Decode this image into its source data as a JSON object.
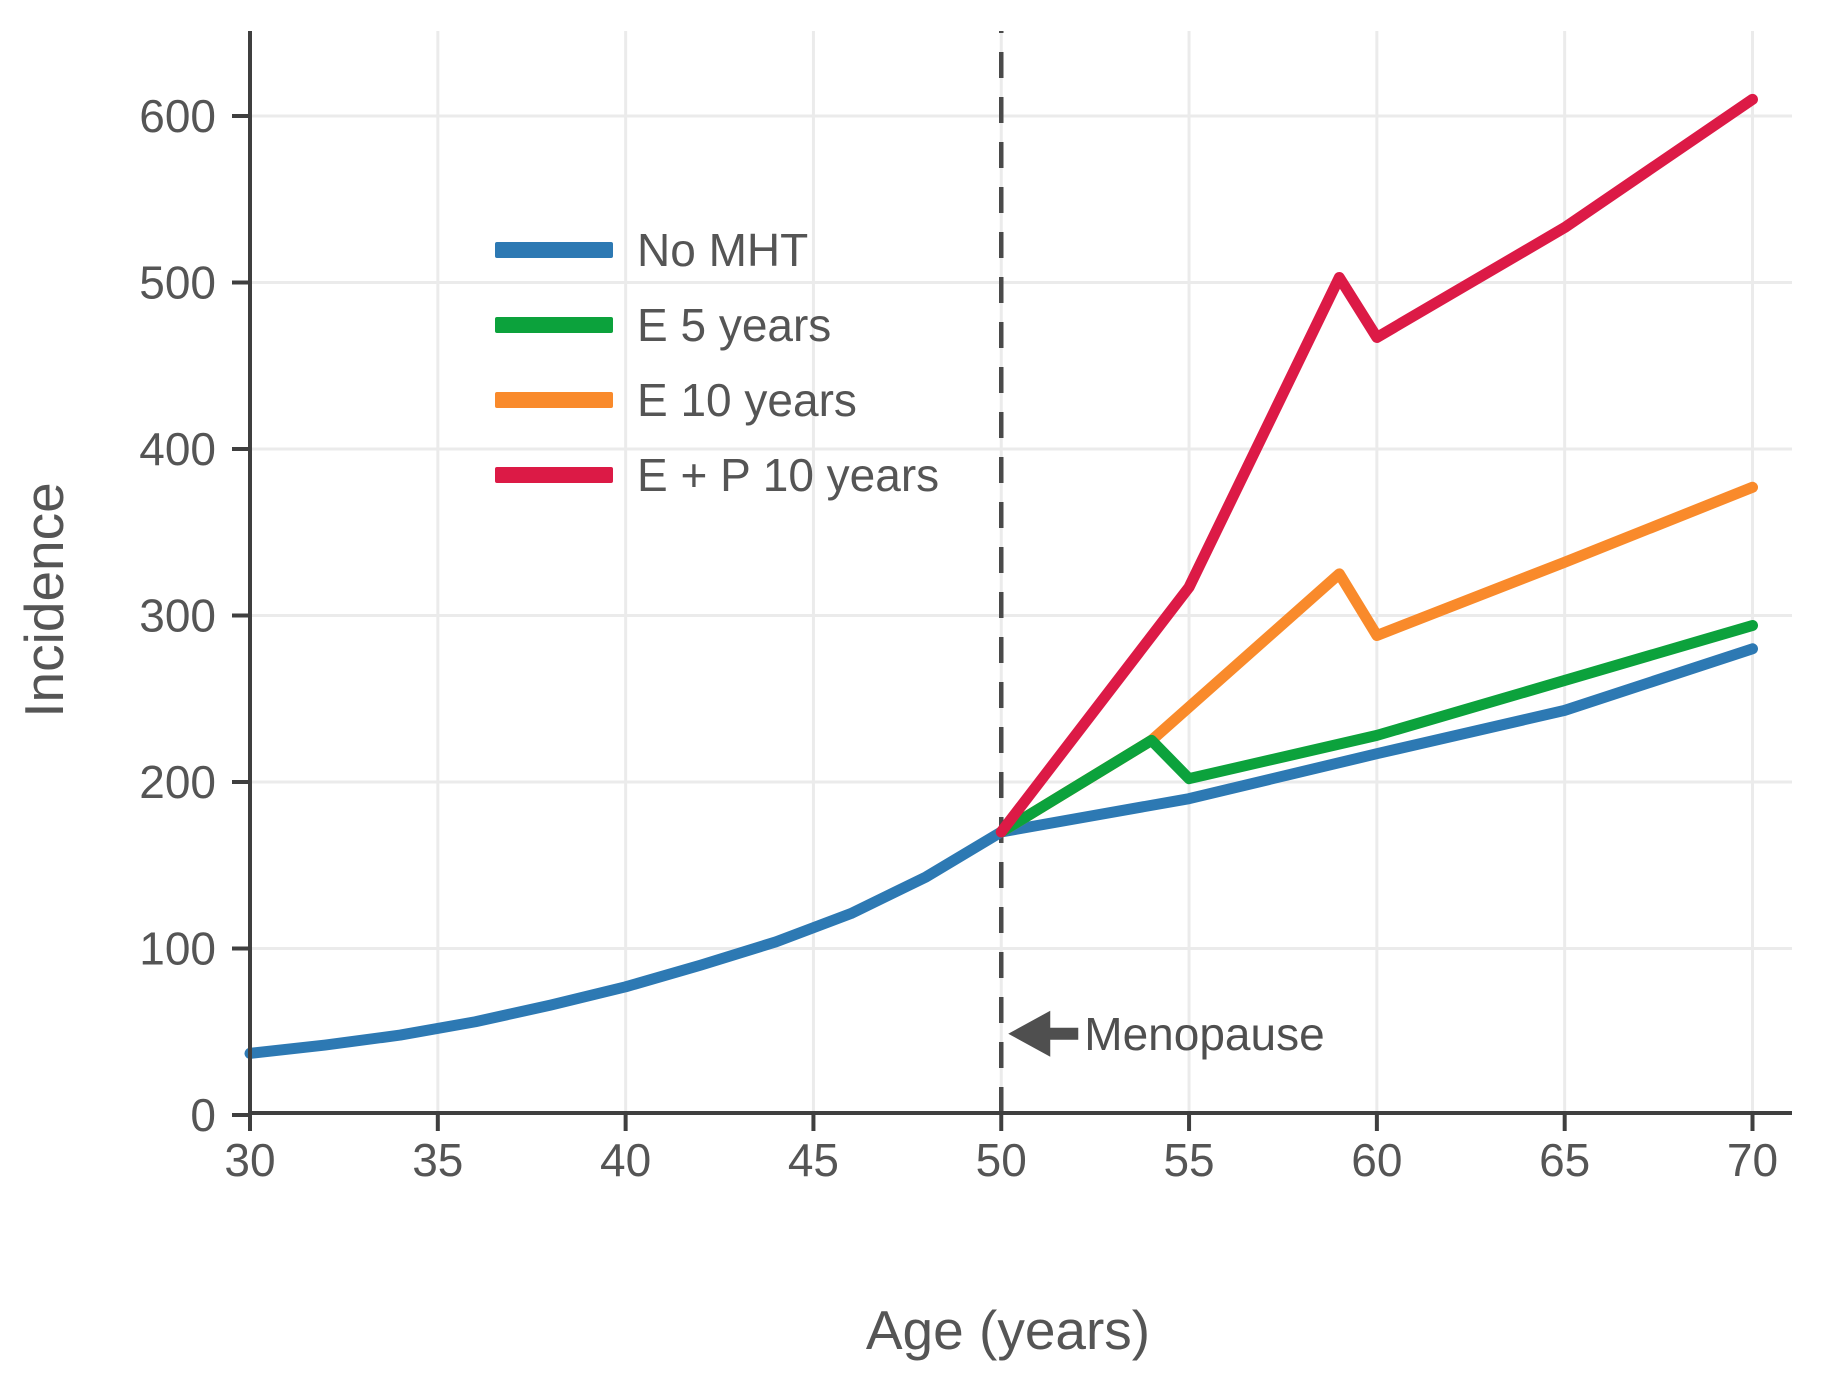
{
  "chart_data": {
    "type": "line",
    "title": "",
    "xlabel": "Age (years)",
    "ylabel": "Incidence",
    "x_ticks": [
      30,
      35,
      40,
      45,
      50,
      55,
      60,
      65,
      70
    ],
    "y_ticks": [
      0,
      100,
      200,
      300,
      400,
      500,
      600
    ],
    "xlim": [
      30,
      71
    ],
    "ylim": [
      0,
      651
    ],
    "grid": true,
    "legend_position": "upper-left-inside",
    "menopause_line_age": 50,
    "annotation": {
      "text": "Menopause",
      "arrow_icon": "left-arrow",
      "points_to_age": 50,
      "y_value": 50
    },
    "series": [
      {
        "name": "No MHT",
        "color": "#2d79b3",
        "z": 1,
        "points": [
          [
            30,
            37
          ],
          [
            32,
            42
          ],
          [
            34,
            48
          ],
          [
            36,
            56
          ],
          [
            38,
            66
          ],
          [
            40,
            77
          ],
          [
            42,
            90
          ],
          [
            44,
            104
          ],
          [
            46,
            121
          ],
          [
            48,
            143
          ],
          [
            50,
            170
          ],
          [
            55,
            190
          ],
          [
            60,
            217
          ],
          [
            65,
            243
          ],
          [
            70,
            280
          ]
        ]
      },
      {
        "name": "E 5 years",
        "color": "#0ca23c",
        "z": 3,
        "points": [
          [
            50,
            170
          ],
          [
            54,
            225
          ],
          [
            55,
            202
          ],
          [
            60,
            228
          ],
          [
            65,
            261
          ],
          [
            70,
            294
          ]
        ]
      },
      {
        "name": "E 10 years",
        "color": "#f98a2b",
        "z": 2,
        "points": [
          [
            50,
            170
          ],
          [
            54,
            225
          ],
          [
            59,
            325
          ],
          [
            60,
            288
          ],
          [
            65,
            332
          ],
          [
            70,
            377
          ]
        ]
      },
      {
        "name": "E + P 10 years",
        "color": "#dc1a46",
        "z": 4,
        "points": [
          [
            50,
            170
          ],
          [
            55,
            317
          ],
          [
            59,
            503
          ],
          [
            60,
            467
          ],
          [
            65,
            533
          ],
          [
            70,
            610
          ]
        ]
      }
    ],
    "colors": {
      "axis": "#3f3f3f",
      "tick_text": "#555555",
      "gridline": "#ebebeb",
      "annotation": "#4f4f4f",
      "dashed_line": "#4a4a4a"
    }
  }
}
